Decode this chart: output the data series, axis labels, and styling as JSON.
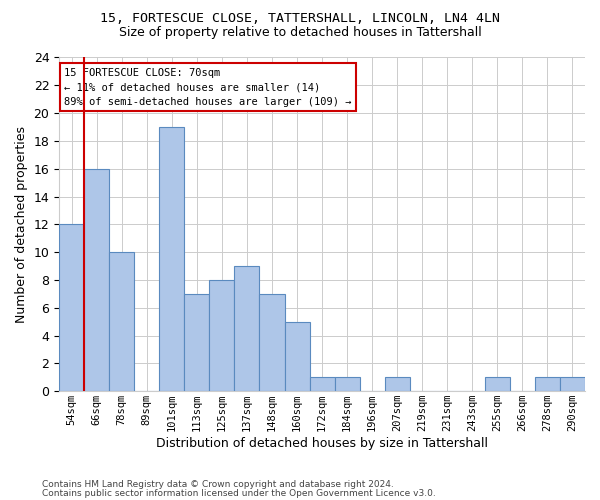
{
  "title1": "15, FORTESCUE CLOSE, TATTERSHALL, LINCOLN, LN4 4LN",
  "title2": "Size of property relative to detached houses in Tattershall",
  "xlabel": "Distribution of detached houses by size in Tattershall",
  "ylabel": "Number of detached properties",
  "categories": [
    "54sqm",
    "66sqm",
    "78sqm",
    "89sqm",
    "101sqm",
    "113sqm",
    "125sqm",
    "137sqm",
    "148sqm",
    "160sqm",
    "172sqm",
    "184sqm",
    "196sqm",
    "207sqm",
    "219sqm",
    "231sqm",
    "243sqm",
    "255sqm",
    "266sqm",
    "278sqm",
    "290sqm"
  ],
  "values": [
    12,
    16,
    10,
    0,
    19,
    7,
    8,
    9,
    7,
    5,
    1,
    1,
    0,
    1,
    0,
    0,
    0,
    1,
    0,
    1,
    1
  ],
  "bar_color": "#aec6e8",
  "bar_edge_color": "#5a8abf",
  "vline_x_index": 1,
  "vline_color": "#cc0000",
  "ylim": [
    0,
    24
  ],
  "yticks": [
    0,
    2,
    4,
    6,
    8,
    10,
    12,
    14,
    16,
    18,
    20,
    22,
    24
  ],
  "annotation_text": "15 FORTESCUE CLOSE: 70sqm\n← 11% of detached houses are smaller (14)\n89% of semi-detached houses are larger (109) →",
  "annotation_box_color": "#ffffff",
  "annotation_border_color": "#cc0000",
  "footer1": "Contains HM Land Registry data © Crown copyright and database right 2024.",
  "footer2": "Contains public sector information licensed under the Open Government Licence v3.0.",
  "bg_color": "#ffffff",
  "grid_color": "#cccccc"
}
